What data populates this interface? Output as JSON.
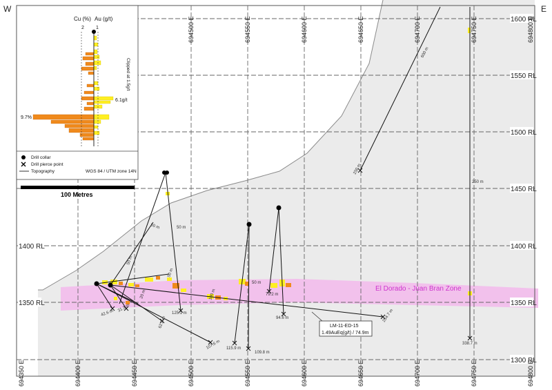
{
  "orientation": {
    "west": "W",
    "east": "E"
  },
  "elevations": [
    {
      "label": "1600 RL",
      "side": "right"
    },
    {
      "label": "1550 RL",
      "side": "right"
    },
    {
      "label": "1500 RL",
      "side": "right"
    },
    {
      "label": "1450 RL",
      "side": "right"
    },
    {
      "label": "1400 RL",
      "side": "both"
    },
    {
      "label": "1350 RL",
      "side": "both"
    },
    {
      "label": "1300 RL",
      "side": "right"
    }
  ],
  "eastings": [
    "694350 E",
    "694400 E",
    "694450 E",
    "694500 E",
    "694550 E",
    "694600 E",
    "694650 E",
    "694700 E",
    "694750 E",
    "694800 E"
  ],
  "zone_label": "El Dorado - Juan Bran Zone",
  "scale_bar": {
    "label": "100 Metres"
  },
  "legend": {
    "cu_header": "Cu (%)",
    "au_header": "Au (g/t)",
    "cu_scale_max": "2",
    "au_scale_max": "1",
    "cu_peak": "9.7%",
    "au_peak": "6.1g/t",
    "cutoff": "Clipped at 1.5g/t",
    "items": [
      {
        "symbol": "drill-collar",
        "label": "Drill collar"
      },
      {
        "symbol": "drill-pierce-point",
        "label": "Drill pierce point"
      },
      {
        "symbol": "topography",
        "label": "Topography"
      }
    ],
    "projection": "WGS 84 / UTM zone 14N"
  },
  "hole_callout": {
    "hole_id": "LM-11-ED-15",
    "intercept": "1.49AuEq(g/t) / 74.9m"
  },
  "depth_labels": [
    "600 m",
    "250 m",
    "250 m",
    "338.7 m",
    "50 m",
    "50 m",
    "50 m",
    "125.1 m",
    "50 m",
    "20 m",
    "100 m",
    "79.2 m",
    "94.6 m",
    "254.7 m",
    "62.2 m",
    "42.6 m",
    "31.3 m",
    "107.6 m",
    "115.9 m",
    "109.8 m",
    "50 m"
  ],
  "colors": {
    "cu": "#f08a1c",
    "au": "#ffef22",
    "zone": "#f3c3ee",
    "topography": "#e8e8e8",
    "zone_text": "#cc33cc"
  }
}
